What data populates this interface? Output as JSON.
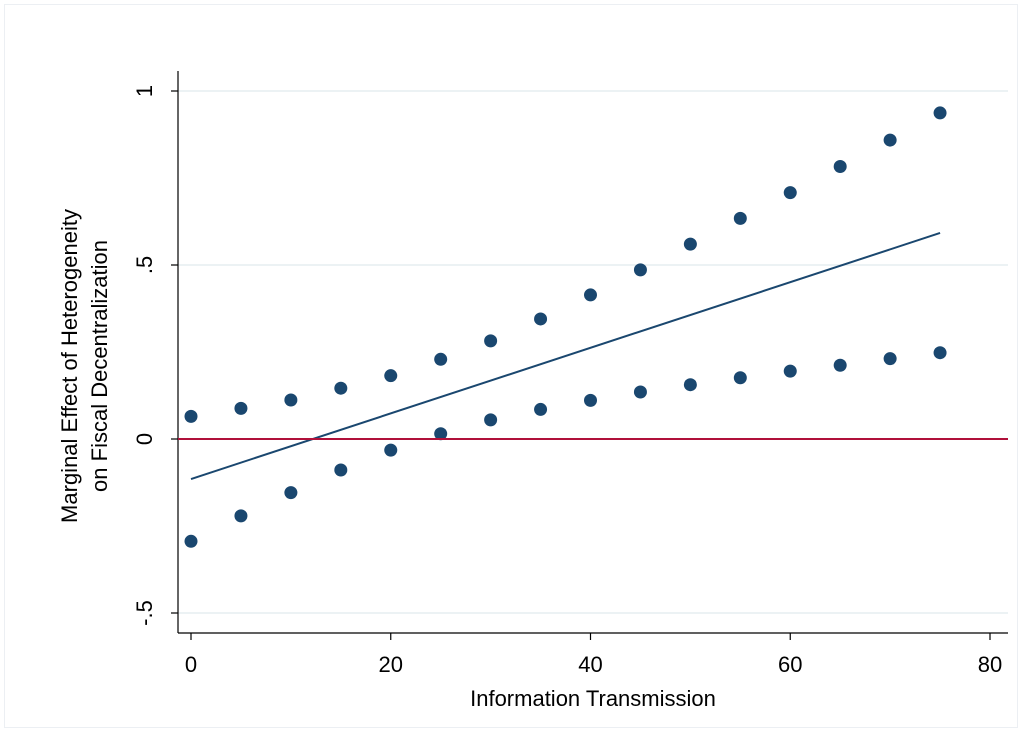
{
  "chart_data": {
    "type": "scatter",
    "xlabel": "Information Transmission",
    "ylabel_lines": [
      "Marginal Effect of Heterogeneity",
      "on Fiscal Decentralization"
    ],
    "xlim": [
      0,
      80
    ],
    "ylim": [
      -0.5,
      1
    ],
    "x_ticks": [
      {
        "value": 0,
        "label": "0"
      },
      {
        "value": 20,
        "label": "20"
      },
      {
        "value": 40,
        "label": "40"
      },
      {
        "value": 60,
        "label": "60"
      },
      {
        "value": 80,
        "label": "80"
      }
    ],
    "y_ticks": [
      {
        "value": -0.5,
        "label": "-.5"
      },
      {
        "value": 0,
        "label": "0"
      },
      {
        "value": 0.5,
        "label": ".5"
      },
      {
        "value": 1,
        "label": "1"
      }
    ],
    "grid": "horizontal",
    "legend": "none",
    "series": [
      {
        "kind": "points",
        "color": "#1a476f",
        "x": [
          0,
          5,
          10,
          15,
          20,
          25,
          30,
          35,
          40,
          45,
          50,
          55,
          60,
          65,
          70,
          75
        ],
        "y": [
          0.065,
          0.088,
          0.112,
          0.146,
          0.182,
          0.229,
          0.282,
          0.345,
          0.414,
          0.486,
          0.56,
          0.634,
          0.708,
          0.783,
          0.859,
          0.937
        ]
      },
      {
        "kind": "points",
        "color": "#1a476f",
        "x": [
          0,
          5,
          10,
          15,
          20,
          25,
          30,
          35,
          40,
          45,
          50,
          55,
          60,
          65,
          70,
          75
        ],
        "y": [
          -0.294,
          -0.221,
          -0.154,
          -0.089,
          -0.032,
          0.015,
          0.055,
          0.085,
          0.111,
          0.135,
          0.156,
          0.176,
          0.195,
          0.212,
          0.231,
          0.248
        ]
      },
      {
        "kind": "line",
        "color": "#1a476f",
        "x": [
          0,
          75
        ],
        "y": [
          -0.115,
          0.592
        ]
      },
      {
        "kind": "reference-line",
        "color": "#b0103a",
        "y": 0
      }
    ]
  }
}
